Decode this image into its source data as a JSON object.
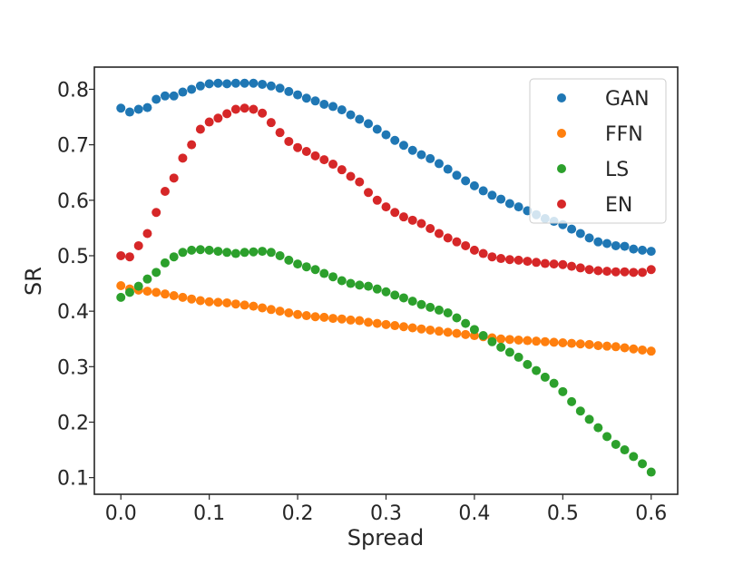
{
  "chart_data": {
    "type": "scatter",
    "title": "",
    "xlabel": "Spread",
    "ylabel": "SR",
    "xlim": [
      -0.03,
      0.63
    ],
    "ylim": [
      0.07,
      0.84
    ],
    "xticks": [
      0.0,
      0.1,
      0.2,
      0.3,
      0.4,
      0.5,
      0.6
    ],
    "xtick_labels": [
      "0.0",
      "0.1",
      "0.2",
      "0.3",
      "0.4",
      "0.5",
      "0.6"
    ],
    "yticks": [
      0.1,
      0.2,
      0.3,
      0.4,
      0.5,
      0.6,
      0.7,
      0.8
    ],
    "ytick_labels": [
      "0.1",
      "0.2",
      "0.3",
      "0.4",
      "0.5",
      "0.6",
      "0.7",
      "0.8"
    ],
    "grid": false,
    "legend_position": "top-right",
    "x": [
      0.0,
      0.01,
      0.02,
      0.03,
      0.04,
      0.05,
      0.06,
      0.07,
      0.08,
      0.09,
      0.1,
      0.11,
      0.12,
      0.13,
      0.14,
      0.15,
      0.16,
      0.17,
      0.18,
      0.19,
      0.2,
      0.21,
      0.22,
      0.23,
      0.24,
      0.25,
      0.26,
      0.27,
      0.28,
      0.29,
      0.3,
      0.31,
      0.32,
      0.33,
      0.34,
      0.35,
      0.36,
      0.37,
      0.38,
      0.39,
      0.4,
      0.41,
      0.42,
      0.43,
      0.44,
      0.45,
      0.46,
      0.47,
      0.48,
      0.49,
      0.5,
      0.51,
      0.52,
      0.53,
      0.54,
      0.55,
      0.56,
      0.57,
      0.58,
      0.59,
      0.6
    ],
    "series": [
      {
        "name": "GAN",
        "color": "#1f77b4",
        "values": [
          0.766,
          0.759,
          0.764,
          0.767,
          0.782,
          0.788,
          0.788,
          0.795,
          0.8,
          0.806,
          0.81,
          0.811,
          0.81,
          0.811,
          0.811,
          0.811,
          0.809,
          0.806,
          0.802,
          0.796,
          0.79,
          0.784,
          0.779,
          0.773,
          0.769,
          0.763,
          0.754,
          0.746,
          0.738,
          0.728,
          0.718,
          0.708,
          0.699,
          0.69,
          0.682,
          0.675,
          0.666,
          0.656,
          0.645,
          0.635,
          0.626,
          0.617,
          0.609,
          0.602,
          0.594,
          0.588,
          0.581,
          0.574,
          0.567,
          0.562,
          0.556,
          0.548,
          0.54,
          0.532,
          0.525,
          0.522,
          0.518,
          0.517,
          0.512,
          0.51,
          0.508
        ]
      },
      {
        "name": "FFN",
        "color": "#ff7f0e",
        "values": [
          0.446,
          0.44,
          0.438,
          0.436,
          0.434,
          0.431,
          0.428,
          0.425,
          0.422,
          0.419,
          0.417,
          0.416,
          0.415,
          0.413,
          0.411,
          0.409,
          0.406,
          0.403,
          0.4,
          0.397,
          0.394,
          0.392,
          0.39,
          0.389,
          0.387,
          0.386,
          0.384,
          0.383,
          0.38,
          0.378,
          0.376,
          0.374,
          0.372,
          0.37,
          0.368,
          0.366,
          0.364,
          0.362,
          0.36,
          0.358,
          0.356,
          0.354,
          0.352,
          0.35,
          0.349,
          0.348,
          0.347,
          0.346,
          0.345,
          0.344,
          0.343,
          0.342,
          0.341,
          0.34,
          0.338,
          0.337,
          0.336,
          0.334,
          0.332,
          0.33,
          0.328
        ]
      },
      {
        "name": "LS",
        "color": "#2ca02c",
        "values": [
          0.425,
          0.434,
          0.445,
          0.458,
          0.47,
          0.487,
          0.498,
          0.506,
          0.51,
          0.511,
          0.51,
          0.508,
          0.506,
          0.504,
          0.506,
          0.507,
          0.508,
          0.506,
          0.5,
          0.492,
          0.485,
          0.48,
          0.475,
          0.468,
          0.462,
          0.455,
          0.45,
          0.447,
          0.445,
          0.44,
          0.435,
          0.429,
          0.424,
          0.418,
          0.412,
          0.407,
          0.402,
          0.397,
          0.388,
          0.378,
          0.367,
          0.356,
          0.345,
          0.335,
          0.326,
          0.317,
          0.304,
          0.293,
          0.281,
          0.27,
          0.255,
          0.237,
          0.22,
          0.205,
          0.19,
          0.174,
          0.16,
          0.15,
          0.138,
          0.125,
          0.11
        ]
      },
      {
        "name": "EN",
        "color": "#d62728",
        "values": [
          0.5,
          0.498,
          0.518,
          0.54,
          0.578,
          0.616,
          0.64,
          0.676,
          0.7,
          0.728,
          0.741,
          0.748,
          0.756,
          0.764,
          0.766,
          0.764,
          0.757,
          0.74,
          0.722,
          0.706,
          0.695,
          0.688,
          0.68,
          0.673,
          0.665,
          0.655,
          0.643,
          0.633,
          0.614,
          0.6,
          0.588,
          0.578,
          0.57,
          0.564,
          0.558,
          0.549,
          0.54,
          0.532,
          0.525,
          0.518,
          0.51,
          0.504,
          0.498,
          0.495,
          0.493,
          0.492,
          0.49,
          0.488,
          0.486,
          0.485,
          0.484,
          0.481,
          0.478,
          0.475,
          0.473,
          0.472,
          0.471,
          0.471,
          0.47,
          0.47,
          0.475
        ]
      }
    ]
  }
}
